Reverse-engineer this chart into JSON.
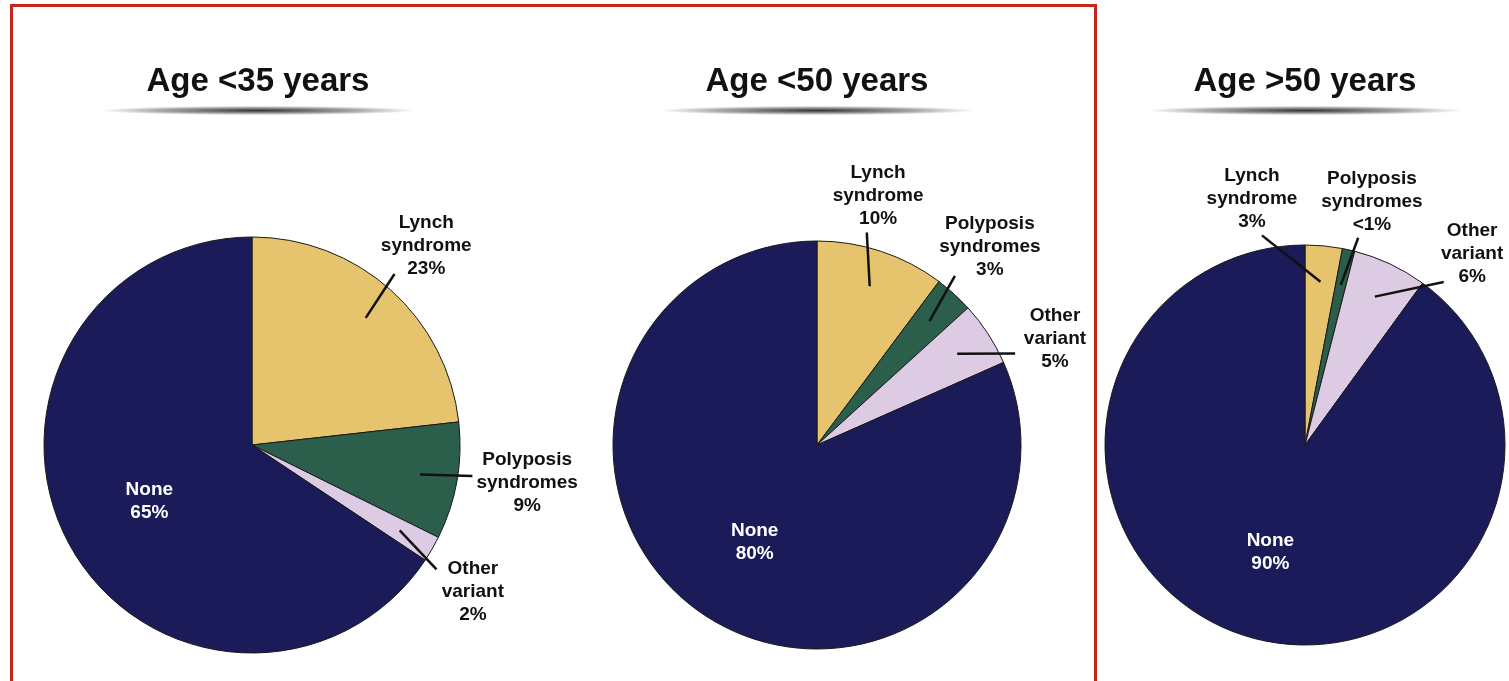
{
  "chart_data": [
    {
      "type": "pie",
      "title": "Age <35 years",
      "categories": [
        "Lynch syndrome",
        "Polyposis syndromes",
        "Other variant",
        "None"
      ],
      "values": [
        23,
        9,
        2,
        65
      ],
      "colors": [
        "#e6c46e",
        "#2b5f4c",
        "#dccbe3",
        "#1c1b5a"
      ],
      "value_labels": [
        "23%",
        "9%",
        "2%",
        "65%"
      ]
    },
    {
      "type": "pie",
      "title": "Age <50 years",
      "categories": [
        "Lynch syndrome",
        "Polyposis syndromes",
        "Other variant",
        "None"
      ],
      "values": [
        10,
        3,
        5,
        80
      ],
      "colors": [
        "#e6c46e",
        "#2b5f4c",
        "#dccbe3",
        "#1c1b5a"
      ],
      "value_labels": [
        "10%",
        "3%",
        "5%",
        "80%"
      ]
    },
    {
      "type": "pie",
      "title": "Age >50 years",
      "categories": [
        "Lynch syndrome",
        "Polyposis syndromes",
        "Other variant",
        "None"
      ],
      "values": [
        3,
        1,
        6,
        90
      ],
      "colors": [
        "#e6c46e",
        "#2b5f4c",
        "#dccbe3",
        "#1c1b5a"
      ],
      "value_labels": [
        "3%",
        "<1%",
        "6%",
        "90%"
      ]
    }
  ]
}
